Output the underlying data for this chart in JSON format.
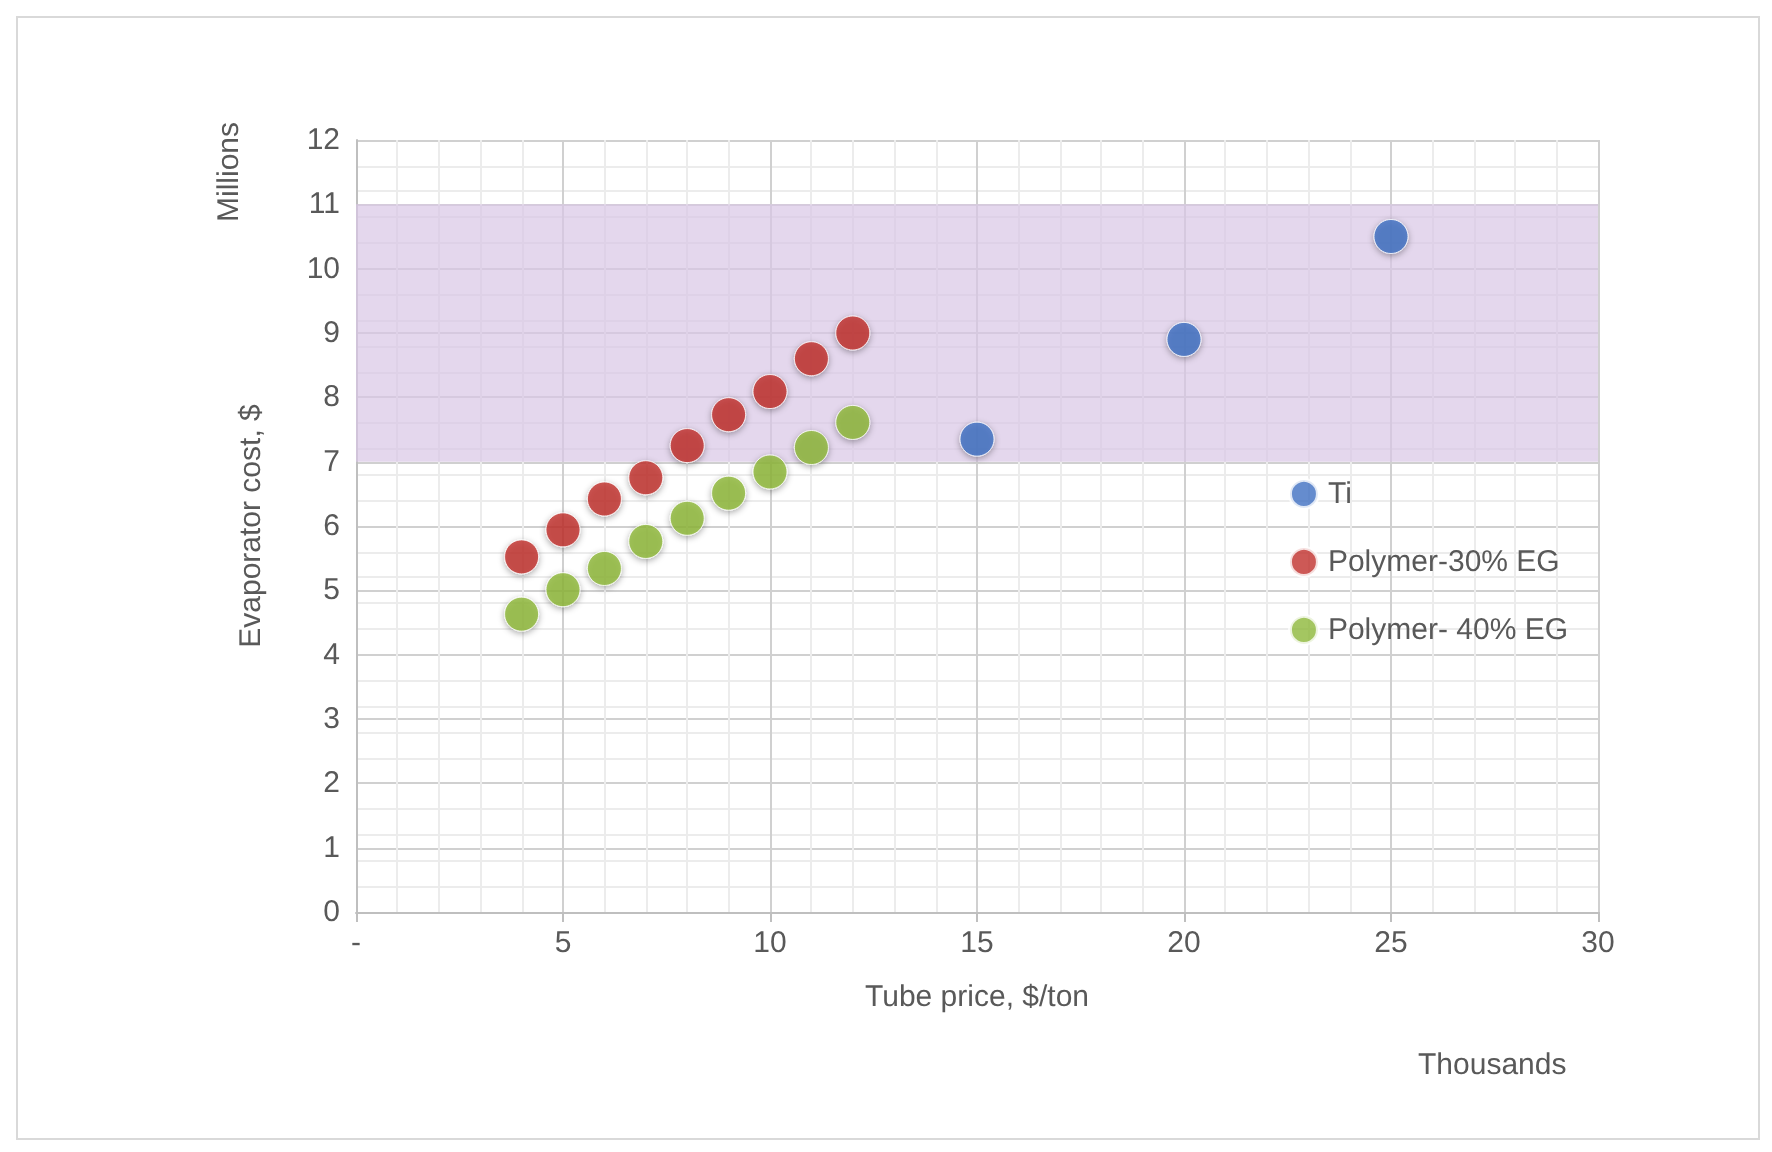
{
  "chart_data": {
    "type": "scatter",
    "xlabel": "Tube price, $/ton",
    "ylabel": "Evaporator cost, $",
    "annotations": [
      "Millions",
      "Thousands"
    ],
    "xlim": [
      0,
      30
    ],
    "xticks": [
      {
        "value": 0,
        "label": "-"
      },
      5,
      10,
      15,
      20,
      25,
      30
    ],
    "ylim": [
      0,
      12
    ],
    "yticks": [
      0,
      1,
      2,
      3,
      4,
      5,
      6,
      7,
      8,
      9,
      10,
      11,
      12
    ],
    "grid": true,
    "legend": "right",
    "marker": "circle",
    "bands": [
      {
        "axis": "y",
        "from": 7,
        "to": 11,
        "color": "#d9c6e6"
      }
    ],
    "series": [
      {
        "name": "Ti",
        "color": "#3e6fc2",
        "x": [
          15,
          20,
          25
        ],
        "values": [
          7.35,
          8.9,
          10.5
        ]
      },
      {
        "name": "Polymer-30% EG",
        "color": "#c0302c",
        "x": [
          4,
          5,
          6,
          7,
          8,
          9,
          10,
          11,
          12
        ],
        "values": [
          5.52,
          5.94,
          6.42,
          6.75,
          7.25,
          7.73,
          8.09,
          8.6,
          9.0
        ]
      },
      {
        "name": "Polymer- 40% EG",
        "color": "#8db83a",
        "x": [
          4,
          5,
          6,
          7,
          8,
          9,
          10,
          11,
          12
        ],
        "values": [
          4.63,
          5.01,
          5.34,
          5.76,
          6.12,
          6.51,
          6.84,
          7.22,
          7.61
        ]
      }
    ]
  }
}
